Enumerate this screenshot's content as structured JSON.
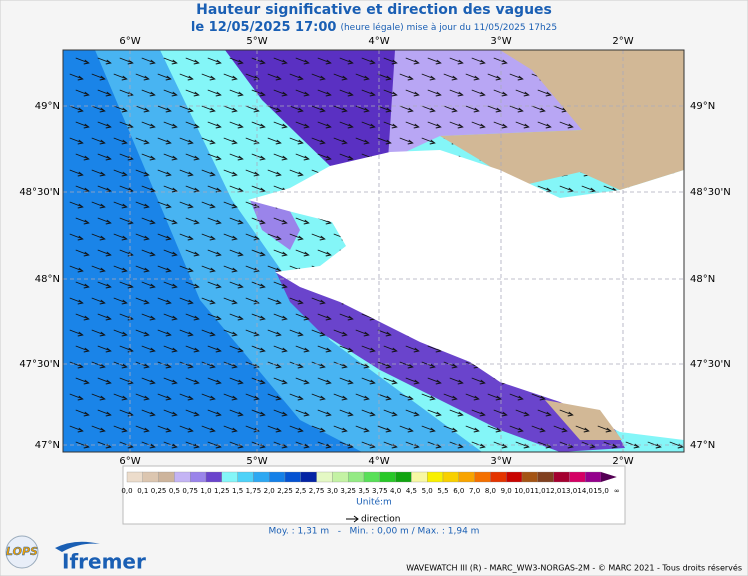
{
  "header": {
    "title": "Hauteur significative et direction des vagues",
    "date": "le 12/05/2025 17:00",
    "note": "(heure légale) mise à jour du 11/05/2025 17h25"
  },
  "map": {
    "longitude_labels": [
      "6°W",
      "5°W",
      "4°W",
      "3°W",
      "2°W"
    ],
    "latitude_labels": [
      "49°N",
      "48°30'N",
      "48°N",
      "47°30'N",
      "47°N"
    ]
  },
  "legend": {
    "labels": [
      "0,0",
      "0,1",
      "0,25",
      "0,5",
      "0,75",
      "1,0",
      "1,25",
      "1,5",
      "1,75",
      "2,0",
      "2,25",
      "2,5",
      "2,75",
      "3,0",
      "3,25",
      "3,5",
      "3,75",
      "4,0",
      "4,5",
      "5,0",
      "5,5",
      "6,0",
      "7,0",
      "8,0",
      "9,0",
      "10,0",
      "11,0",
      "12,0",
      "13,0",
      "14,0",
      "15,0",
      "∞"
    ],
    "colors": [
      "#ecdccb",
      "#dcc6b0",
      "#cdb49c",
      "#c4b4f4",
      "#9a84ea",
      "#6a44cc",
      "#84f6f8",
      "#4ed2f8",
      "#2ea8f2",
      "#1480e8",
      "#0452d2",
      "#0424a4",
      "#e4f8c4",
      "#c4f2a4",
      "#94ea84",
      "#58e058",
      "#28c828",
      "#10a410",
      "#f8f8a4",
      "#f8f000",
      "#f8d000",
      "#f8a400",
      "#f47000",
      "#e43400",
      "#c80400",
      "#a45414",
      "#804020",
      "#a40030",
      "#d40064",
      "#94008c",
      "#540054"
    ],
    "unit": "Unité:m",
    "direction": "direction",
    "stats": "Moy. : 1,31 m   -   Min. : 0,00 m / Max. : 1,94 m"
  },
  "logos": {
    "lops": "LOPS",
    "ifremer": "Ifremer"
  },
  "footer": "WAVEWATCH III (R) - MARC_WW3-NORGAS-2M - © MARC 2021 - Tous droits réservés"
}
